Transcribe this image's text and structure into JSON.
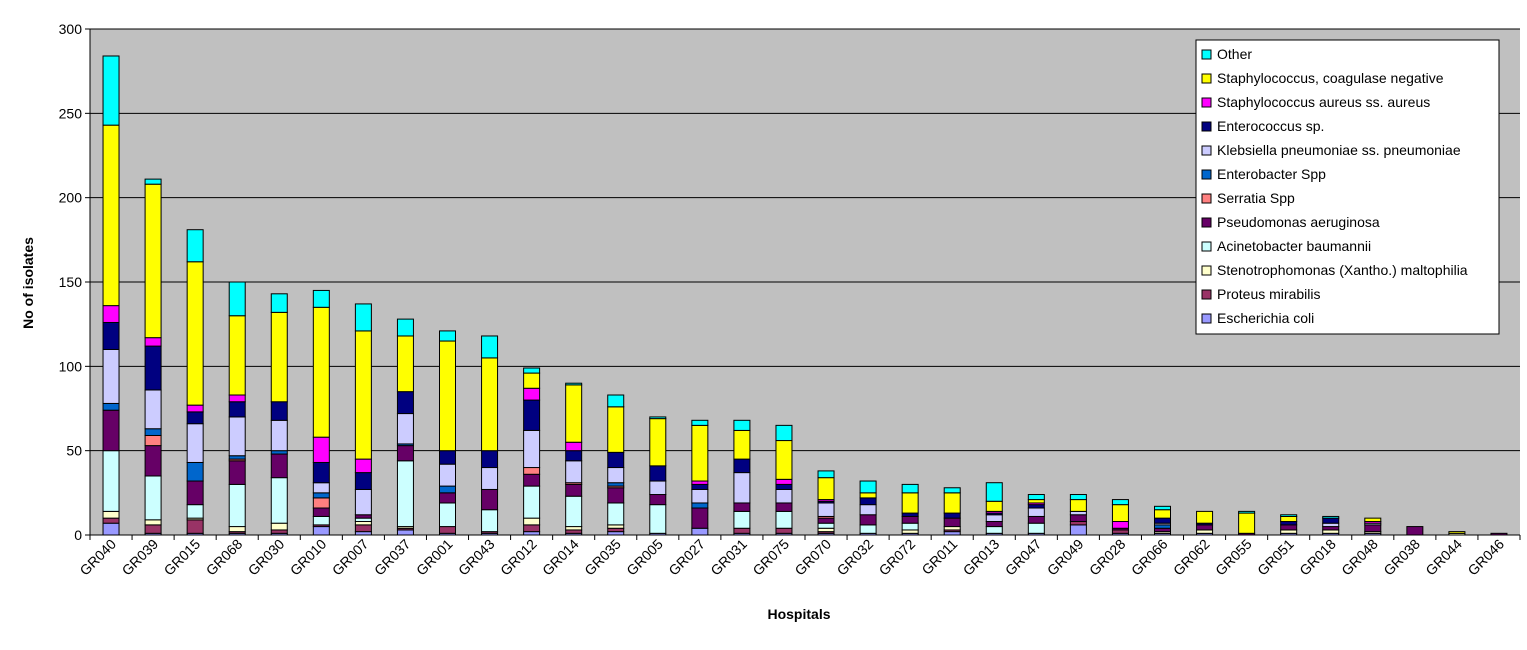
{
  "chart_data": {
    "type": "bar",
    "stacked": true,
    "title": "",
    "xlabel": "Hospitals",
    "ylabel": "No of isolates",
    "ylim": [
      0,
      300
    ],
    "yticks": [
      0,
      50,
      100,
      150,
      200,
      250,
      300
    ],
    "grid": true,
    "legend_position": "top-right",
    "categories": [
      "GR040",
      "GR039",
      "GR015",
      "GR068",
      "GR030",
      "GR010",
      "GR007",
      "GR037",
      "GR001",
      "GR043",
      "GR012",
      "GR014",
      "GR035",
      "GR005",
      "GR027",
      "GR031",
      "GR075",
      "GR070",
      "GR032",
      "GR072",
      "GR011",
      "GR013",
      "GR047",
      "GR049",
      "GR028",
      "GR066",
      "GR062",
      "GR055",
      "GR051",
      "GR018",
      "GR048",
      "GR038",
      "GR044",
      "GR046"
    ],
    "series": [
      {
        "name": "Escherichia coli",
        "color": "#9999ff",
        "values": [
          7,
          1,
          1,
          1,
          1,
          5,
          2,
          3,
          1,
          1,
          2,
          1,
          2,
          1,
          4,
          1,
          1,
          1,
          1,
          1,
          2,
          1,
          1,
          6,
          1,
          1,
          1,
          0,
          1,
          1,
          1,
          0,
          0,
          0
        ]
      },
      {
        "name": "Proteus mirabilis",
        "color": "#993366",
        "values": [
          3,
          5,
          8,
          1,
          2,
          1,
          4,
          1,
          4,
          1,
          4,
          2,
          2,
          0,
          0,
          3,
          3,
          1,
          0,
          0,
          1,
          0,
          0,
          2,
          2,
          0,
          0,
          0,
          0,
          0,
          0,
          0,
          0,
          0
        ]
      },
      {
        "name": "Stenotrophomonas (Xantho.) maltophilia",
        "color": "#ffffcc",
        "values": [
          4,
          3,
          1,
          3,
          4,
          0,
          2,
          1,
          0,
          0,
          4,
          2,
          2,
          0,
          0,
          0,
          0,
          2,
          0,
          2,
          2,
          0,
          0,
          0,
          0,
          1,
          2,
          0,
          2,
          2,
          1,
          0,
          1,
          0
        ]
      },
      {
        "name": "Acinetobacter baumannii",
        "color": "#ccffff",
        "values": [
          36,
          26,
          8,
          25,
          27,
          5,
          2,
          39,
          14,
          13,
          19,
          18,
          13,
          17,
          0,
          10,
          10,
          3,
          5,
          4,
          0,
          4,
          6,
          0,
          0,
          0,
          0,
          0,
          0,
          0,
          0,
          0,
          0,
          0
        ]
      },
      {
        "name": "Pseudomonas aeruginosa",
        "color": "#660066",
        "values": [
          24,
          18,
          14,
          14,
          14,
          5,
          2,
          9,
          6,
          12,
          7,
          7,
          9,
          6,
          12,
          5,
          5,
          3,
          6,
          4,
          5,
          3,
          4,
          4,
          1,
          2,
          3,
          1,
          3,
          2,
          4,
          5,
          0,
          1
        ]
      },
      {
        "name": "Serratia Spp",
        "color": "#ff8080",
        "values": [
          0,
          6,
          0,
          1,
          0,
          6,
          0,
          0,
          0,
          0,
          4,
          1,
          1,
          0,
          0,
          0,
          0,
          1,
          0,
          0,
          0,
          0,
          0,
          0,
          0,
          0,
          0,
          0,
          0,
          0,
          0,
          0,
          0,
          0
        ]
      },
      {
        "name": "Enterobacter Spp",
        "color": "#0066cc",
        "values": [
          4,
          4,
          11,
          2,
          2,
          3,
          0,
          1,
          4,
          0,
          0,
          0,
          2,
          0,
          3,
          0,
          0,
          0,
          0,
          0,
          0,
          0,
          0,
          0,
          0,
          2,
          0,
          0,
          0,
          0,
          0,
          0,
          0,
          0
        ]
      },
      {
        "name": "Klebsiella pneumoniae ss. pneumoniae",
        "color": "#ccccff",
        "values": [
          32,
          23,
          23,
          23,
          18,
          6,
          15,
          18,
          13,
          13,
          22,
          13,
          9,
          8,
          8,
          18,
          8,
          8,
          6,
          0,
          0,
          4,
          5,
          2,
          0,
          1,
          0,
          0,
          0,
          2,
          1,
          0,
          0,
          0
        ]
      },
      {
        "name": "Enterococcus sp.",
        "color": "#000080",
        "values": [
          16,
          26,
          7,
          9,
          11,
          12,
          10,
          13,
          8,
          10,
          18,
          6,
          9,
          9,
          3,
          8,
          3,
          1,
          4,
          2,
          3,
          1,
          2,
          0,
          0,
          3,
          1,
          0,
          2,
          3,
          0,
          0,
          0,
          0
        ]
      },
      {
        "name": "Staphylococcus aureus ss. aureus",
        "color": "#ff00ff",
        "values": [
          10,
          5,
          4,
          4,
          0,
          15,
          8,
          0,
          0,
          0,
          7,
          5,
          0,
          0,
          2,
          0,
          3,
          1,
          0,
          0,
          0,
          1,
          1,
          0,
          4,
          0,
          0,
          0,
          0,
          0,
          1,
          0,
          0,
          0
        ]
      },
      {
        "name": "Staphylococcus, coagulase negative",
        "color": "#ffff00",
        "values": [
          107,
          91,
          85,
          47,
          53,
          77,
          76,
          33,
          65,
          55,
          9,
          34,
          27,
          28,
          33,
          17,
          23,
          13,
          3,
          12,
          12,
          6,
          2,
          7,
          10,
          5,
          7,
          12,
          3,
          0,
          2,
          0,
          1,
          0
        ]
      },
      {
        "name": "Other",
        "color": "#00ffff",
        "values": [
          41,
          3,
          19,
          20,
          11,
          10,
          16,
          10,
          6,
          13,
          3,
          1,
          7,
          1,
          3,
          6,
          9,
          4,
          7,
          5,
          3,
          11,
          3,
          3,
          3,
          2,
          0,
          1,
          1,
          1,
          0,
          0,
          0,
          0
        ]
      }
    ]
  }
}
